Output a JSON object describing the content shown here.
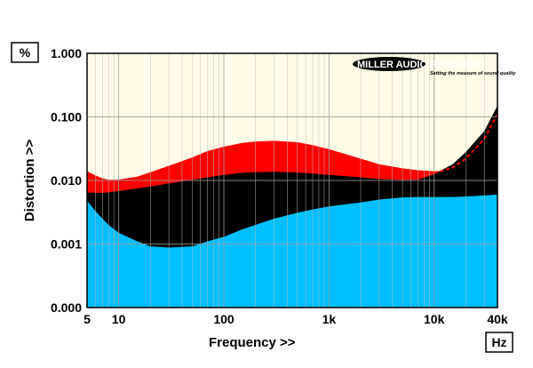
{
  "chart_data": {
    "type": "area",
    "xlabel": "Frequency >>",
    "ylabel": "Distortion >>",
    "x_unit": "Hz",
    "y_unit": "%",
    "x_scale": "log",
    "y_scale": "log",
    "xlim": [
      5,
      40000
    ],
    "ylim": [
      0.0,
      1.0
    ],
    "grid": true,
    "x_ticks": [
      {
        "value": 5,
        "label": "5"
      },
      {
        "value": 10,
        "label": "10"
      },
      {
        "value": 100,
        "label": "100"
      },
      {
        "value": 1000,
        "label": "1k"
      },
      {
        "value": 10000,
        "label": "10k"
      },
      {
        "value": 40000,
        "label": "40k"
      }
    ],
    "y_ticks": [
      {
        "value": 1.0,
        "label": "1.000"
      },
      {
        "value": 0.1,
        "label": "0.100"
      },
      {
        "value": 0.01,
        "label": "0.010"
      },
      {
        "value": 0.001,
        "label": "0.001"
      },
      {
        "value": 0.0,
        "label": "0.000"
      }
    ],
    "x": [
      5,
      6,
      7,
      8,
      10,
      15,
      20,
      30,
      50,
      70,
      100,
      150,
      200,
      300,
      500,
      700,
      1000,
      2000,
      3000,
      5000,
      7000,
      10000,
      15000,
      20000,
      30000,
      40000
    ],
    "series": [
      {
        "color": "#ff0000",
        "values": [
          0.014,
          0.012,
          0.0108,
          0.0103,
          0.0103,
          0.0115,
          0.0135,
          0.017,
          0.023,
          0.029,
          0.034,
          0.039,
          0.041,
          0.042,
          0.04,
          0.036,
          0.031,
          0.022,
          0.018,
          0.0155,
          0.0145,
          0.014,
          0.0142,
          0.0145,
          0.0155,
          0.0165
        ]
      },
      {
        "color": "#000000",
        "values": [
          0.0065,
          0.0064,
          0.0064,
          0.0065,
          0.0068,
          0.0075,
          0.008,
          0.009,
          0.0102,
          0.0112,
          0.0122,
          0.0132,
          0.0135,
          0.0137,
          0.0133,
          0.0128,
          0.0122,
          0.0112,
          0.0105,
          0.0102,
          0.0103,
          0.0125,
          0.018,
          0.028,
          0.06,
          0.15
        ]
      },
      {
        "color": "#00bfff",
        "values": [
          0.0048,
          0.0033,
          0.0025,
          0.002,
          0.0015,
          0.0011,
          0.00092,
          0.00088,
          0.00092,
          0.0011,
          0.0013,
          0.0017,
          0.002,
          0.0025,
          0.0031,
          0.0035,
          0.0039,
          0.0045,
          0.005,
          0.0054,
          0.0055,
          0.0055,
          0.0055,
          0.0056,
          0.0058,
          0.006
        ]
      },
      {
        "color": "#ff0000",
        "line_style": "dashed",
        "x": [
          10000,
          15000,
          20000,
          30000,
          40000
        ],
        "values": [
          0.013,
          0.016,
          0.022,
          0.045,
          0.11
        ]
      }
    ],
    "colors": {
      "background": "#fffbe6",
      "grid": "#bdbdbd"
    },
    "logo": {
      "brand": "MILLER AUDIO RESEARCH",
      "tagline": "Setting the measure of sound quality"
    }
  }
}
